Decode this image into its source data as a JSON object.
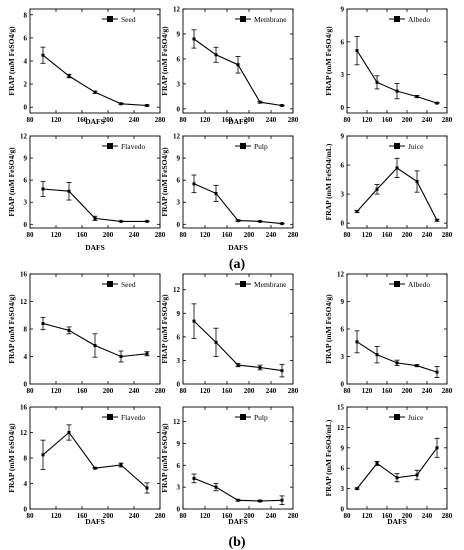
{
  "panel_labels": {
    "a": "(a)",
    "b": "(b)"
  },
  "chart_data": [
    {
      "type": "line",
      "group": "a",
      "series": [
        {
          "name": "Seed",
          "x": [
            100,
            140,
            180,
            220,
            260
          ],
          "y": [
            4.5,
            2.7,
            1.3,
            0.3,
            0.15
          ],
          "err": [
            0.7,
            0.15,
            0.1,
            0.05,
            0.05
          ]
        }
      ],
      "xlabel": "DAFS",
      "ylabel": "FRAP (mM FeSO4/g)",
      "xlim": [
        80,
        280
      ],
      "ylim": [
        -0.5,
        8.5
      ],
      "xticks": [
        80,
        120,
        160,
        200,
        240,
        280
      ],
      "yticks": [
        0,
        2,
        4,
        6,
        8
      ],
      "xtick_labels_printed": true
    },
    {
      "type": "line",
      "group": "a",
      "series": [
        {
          "name": "Membrane",
          "x": [
            100,
            140,
            180,
            220,
            260
          ],
          "y": [
            8.4,
            6.5,
            5.3,
            0.8,
            0.4
          ],
          "err": [
            1.1,
            0.9,
            1.0,
            0.1,
            0.05
          ]
        }
      ],
      "xlabel": "DAFS",
      "ylabel": "FRAP (mM FeSO4/g)",
      "xlim": [
        80,
        280
      ],
      "ylim": [
        -0.5,
        12
      ],
      "xticks": [
        80,
        120,
        160,
        200,
        240,
        280
      ],
      "yticks": [
        0,
        3,
        6,
        9,
        12
      ],
      "xtick_labels_printed": true
    },
    {
      "type": "line",
      "group": "a",
      "series": [
        {
          "name": "Albedo",
          "x": [
            100,
            140,
            180,
            220,
            260
          ],
          "y": [
            5.2,
            2.3,
            1.5,
            1.0,
            0.4
          ],
          "err": [
            1.3,
            0.6,
            0.7,
            0.1,
            0.05
          ]
        }
      ],
      "xlabel": "",
      "ylabel": "FRAP (mM FeSO4/g)",
      "xlim": [
        80,
        280
      ],
      "ylim": [
        -0.5,
        9
      ],
      "xticks": [
        80,
        120,
        160,
        200,
        240,
        280
      ],
      "yticks": [
        0,
        3,
        6,
        9
      ],
      "xtick_labels_printed": true
    },
    {
      "type": "line",
      "group": "a",
      "series": [
        {
          "name": "Flavedo",
          "x": [
            100,
            140,
            180,
            220,
            260
          ],
          "y": [
            4.8,
            4.5,
            0.8,
            0.4,
            0.4
          ],
          "err": [
            1.0,
            1.2,
            0.3,
            0.05,
            0.05
          ]
        }
      ],
      "xlabel": "DAFS",
      "ylabel": "FRAP (mM FeSO4/g)",
      "xlim": [
        80,
        280
      ],
      "ylim": [
        -0.5,
        12
      ],
      "xticks": [
        80,
        120,
        160,
        200,
        240,
        280
      ],
      "yticks": [
        0,
        3,
        6,
        9,
        12
      ],
      "xtick_labels_printed": true
    },
    {
      "type": "line",
      "group": "a",
      "series": [
        {
          "name": "Pulp",
          "x": [
            100,
            140,
            180,
            220,
            260
          ],
          "y": [
            5.5,
            4.2,
            0.5,
            0.4,
            0.1
          ],
          "err": [
            1.2,
            1.1,
            0.1,
            0.05,
            0.05
          ]
        }
      ],
      "xlabel": "DAFS",
      "ylabel": "FRAP (mM FeSO4/g)",
      "xlim": [
        80,
        280
      ],
      "ylim": [
        -0.5,
        12
      ],
      "xticks": [
        80,
        120,
        160,
        200,
        240,
        280
      ],
      "yticks": [
        0,
        3,
        6,
        9,
        12
      ],
      "xtick_labels_printed": true
    },
    {
      "type": "line",
      "group": "a",
      "series": [
        {
          "name": "Juice",
          "x": [
            100,
            140,
            180,
            220,
            260
          ],
          "y": [
            1.2,
            3.5,
            5.7,
            4.3,
            0.3
          ],
          "err": [
            0.1,
            0.5,
            1.0,
            1.1,
            0.1
          ]
        }
      ],
      "xlabel": "",
      "ylabel": "FRAP (mM FeSO4/mL)",
      "xlim": [
        80,
        280
      ],
      "ylim": [
        -0.5,
        9
      ],
      "xticks": [
        80,
        120,
        160,
        200,
        240,
        280
      ],
      "yticks": [
        0,
        3,
        6,
        9
      ],
      "xtick_labels_printed": true
    },
    {
      "type": "line",
      "group": "b",
      "series": [
        {
          "name": "Seed",
          "x": [
            100,
            140,
            180,
            220,
            260
          ],
          "y": [
            8.8,
            7.8,
            5.6,
            4.0,
            4.4
          ],
          "err": [
            0.9,
            0.5,
            1.7,
            0.8,
            0.3
          ]
        }
      ],
      "xlabel": "",
      "ylabel": "FRAP (mM FeSO4/g)",
      "xlim": [
        80,
        280
      ],
      "ylim": [
        0,
        16
      ],
      "xticks": [
        80,
        120,
        160,
        200,
        240,
        280
      ],
      "yticks": [
        0,
        4,
        8,
        12,
        16
      ],
      "xtick_labels_printed": true
    },
    {
      "type": "line",
      "group": "b",
      "series": [
        {
          "name": "Membrane",
          "x": [
            100,
            140,
            180,
            220,
            260
          ],
          "y": [
            8.0,
            5.3,
            2.4,
            2.1,
            1.7
          ],
          "err": [
            2.2,
            1.8,
            0.2,
            0.3,
            0.8
          ]
        }
      ],
      "xlabel": "",
      "ylabel": "FRAP (mM FeSO4/g)",
      "xlim": [
        80,
        280
      ],
      "ylim": [
        0,
        14
      ],
      "xticks": [
        80,
        120,
        160,
        200,
        240,
        280
      ],
      "yticks": [
        0,
        3,
        6,
        9,
        12
      ],
      "xtick_labels_printed": true
    },
    {
      "type": "line",
      "group": "b",
      "series": [
        {
          "name": "Albedo",
          "x": [
            100,
            140,
            180,
            220,
            260
          ],
          "y": [
            4.6,
            3.2,
            2.3,
            2.0,
            1.3
          ],
          "err": [
            1.2,
            0.9,
            0.3,
            0.1,
            0.6
          ]
        }
      ],
      "xlabel": "",
      "ylabel": "FRAP (mM FeSO4/g)",
      "xlim": [
        80,
        280
      ],
      "ylim": [
        0,
        12
      ],
      "xticks": [
        80,
        120,
        160,
        200,
        240,
        280
      ],
      "yticks": [
        0,
        3,
        6,
        9,
        12
      ],
      "xtick_labels_printed": true
    },
    {
      "type": "line",
      "group": "b",
      "series": [
        {
          "name": "Flavedo",
          "x": [
            100,
            140,
            180,
            220,
            260
          ],
          "y": [
            8.5,
            12.0,
            6.4,
            6.9,
            3.3
          ],
          "err": [
            2.3,
            1.2,
            0.1,
            0.3,
            0.8
          ]
        }
      ],
      "xlabel": "DAFS",
      "ylabel": "FRAP (mM FeSO4/g)",
      "xlim": [
        80,
        280
      ],
      "ylim": [
        0,
        16
      ],
      "xticks": [
        80,
        120,
        160,
        200,
        240,
        280
      ],
      "yticks": [
        0,
        4,
        8,
        12,
        16
      ],
      "xtick_labels_printed": true
    },
    {
      "type": "line",
      "group": "b",
      "series": [
        {
          "name": "Pulp",
          "x": [
            100,
            140,
            180,
            220,
            260
          ],
          "y": [
            4.2,
            3.0,
            1.2,
            1.1,
            1.2
          ],
          "err": [
            0.6,
            0.5,
            0.1,
            0.1,
            0.6
          ]
        }
      ],
      "xlabel": "DAFS",
      "ylabel": "FRAP (mM FeSO4/g)",
      "xlim": [
        80,
        280
      ],
      "ylim": [
        0,
        14
      ],
      "xticks": [
        80,
        120,
        160,
        200,
        240,
        280
      ],
      "yticks": [
        0,
        3,
        6,
        9,
        12
      ],
      "xtick_labels_printed": true
    },
    {
      "type": "line",
      "group": "b",
      "series": [
        {
          "name": "Juice",
          "x": [
            100,
            140,
            180,
            220,
            260
          ],
          "y": [
            3.0,
            6.7,
            4.6,
            5.0,
            9.0
          ],
          "err": [
            0.1,
            0.3,
            0.6,
            0.7,
            1.4
          ]
        }
      ],
      "xlabel": "DAFS",
      "ylabel": "FRAP (mM FeSO4/mL)",
      "xlim": [
        80,
        280
      ],
      "ylim": [
        0,
        15
      ],
      "xticks": [
        80,
        120,
        160,
        200,
        240,
        280
      ],
      "yticks": [
        0,
        3,
        6,
        9,
        12,
        15
      ],
      "xtick_labels_printed": true
    }
  ]
}
